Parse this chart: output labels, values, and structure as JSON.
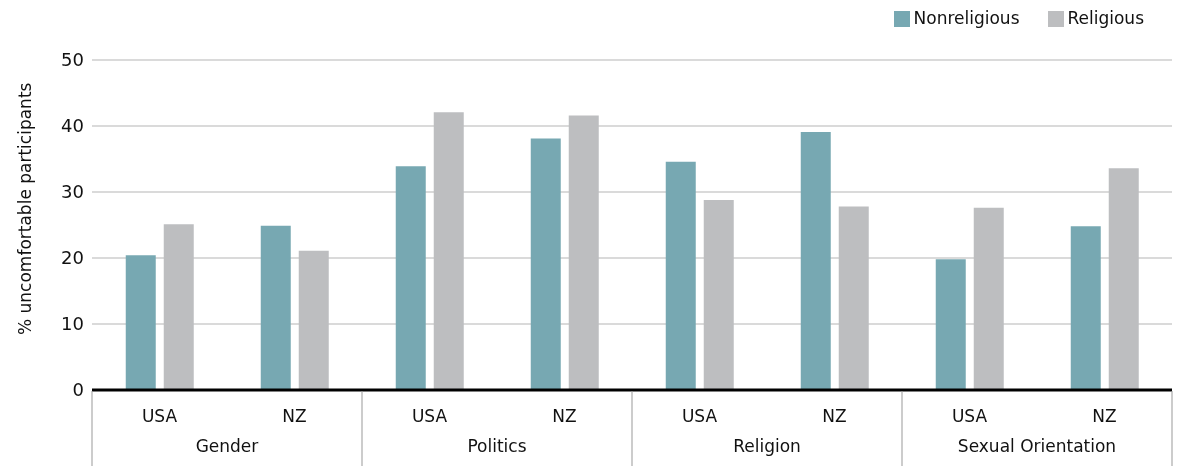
{
  "chart_data": {
    "type": "bar",
    "ylabel": "% uncomfortable participants",
    "categories": [
      "USA",
      "NZ",
      "USA",
      "NZ",
      "USA",
      "NZ",
      "USA",
      "NZ"
    ],
    "series": [
      {
        "name": "Nonreligious",
        "color": "#77a8b2",
        "values": [
          20.4,
          24.9,
          33.9,
          38.1,
          34.6,
          39.1,
          19.8,
          24.8
        ]
      },
      {
        "name": "Religious",
        "color": "#bdbec0",
        "values": [
          25.1,
          21.1,
          42.1,
          41.6,
          28.8,
          27.8,
          27.6,
          33.6
        ]
      }
    ],
    "annotations": [
      "Gender",
      "Politics",
      "Religion",
      "Sexual Orientation"
    ],
    "ylim": [
      0,
      50
    ],
    "yticks": [
      0,
      10,
      20,
      30,
      40,
      50
    ],
    "grid": "y",
    "legend": "top right"
  }
}
